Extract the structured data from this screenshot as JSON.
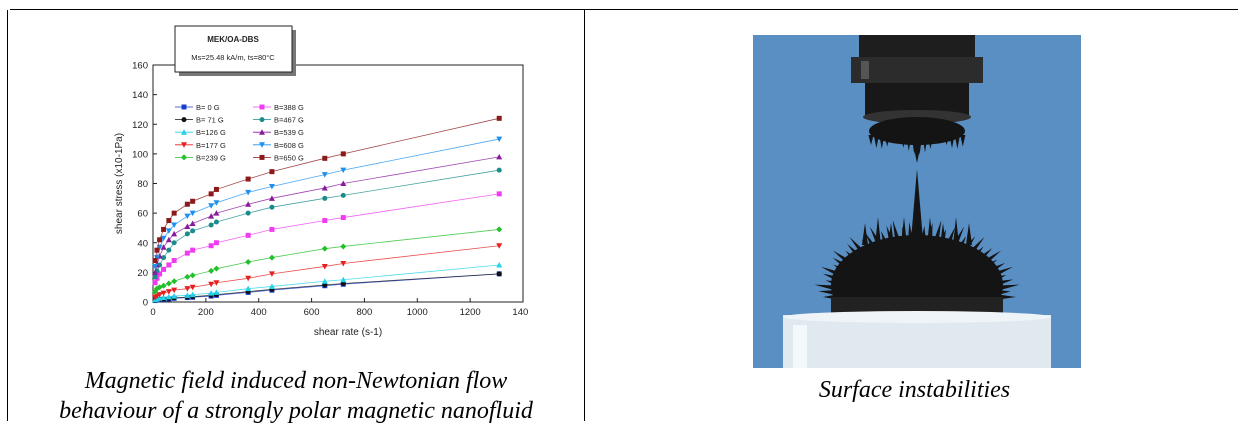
{
  "chart_data": {
    "type": "scatter",
    "annotation_title": "MEK/OA-DBS",
    "annotation_subtitle": "Ms=25.48 kA/m, ts=80°C",
    "xlabel": "shear rate (s-1)",
    "ylabel": "shear stress (x10-1Pa)",
    "xlim": [
      0,
      1400
    ],
    "ylim": [
      0,
      160
    ],
    "xticks": [
      0,
      200,
      400,
      600,
      800,
      1000,
      1200,
      1400
    ],
    "yticks": [
      0,
      20,
      40,
      60,
      80,
      100,
      120,
      140,
      160
    ],
    "legend_placement": "upper-left",
    "x": [
      8,
      15,
      25,
      40,
      60,
      80,
      130,
      150,
      220,
      240,
      360,
      450,
      650,
      720,
      1310
    ],
    "series": [
      {
        "name": "B=   0 G",
        "color": "#1a3ccc",
        "marker": "square",
        "values": [
          1,
          1.3,
          1.5,
          1.8,
          2,
          2.5,
          3,
          3.2,
          4,
          4.5,
          6.5,
          8,
          11,
          12,
          19
        ]
      },
      {
        "name": "B=  71 G",
        "color": "#111111",
        "marker": "circle",
        "values": [
          1.2,
          1.5,
          1.8,
          2,
          2.4,
          2.8,
          3.3,
          3.6,
          4.5,
          5,
          7,
          8.5,
          11.5,
          12.5,
          19
        ]
      },
      {
        "name": "B=126 G",
        "color": "#22d3e8",
        "marker": "triangle",
        "values": [
          1.5,
          2,
          2.5,
          3,
          3.5,
          4,
          4.5,
          5,
          6,
          6.5,
          9,
          10.5,
          14,
          15,
          25
        ]
      },
      {
        "name": "B=177 G",
        "color": "#e62020",
        "marker": "tri-down",
        "values": [
          3,
          4,
          5,
          6,
          7,
          8,
          9,
          10,
          12,
          13,
          16,
          19,
          24,
          26,
          38
        ]
      },
      {
        "name": "B=239 G",
        "color": "#22c02a",
        "marker": "diamond",
        "values": [
          7,
          9,
          10,
          11,
          12.5,
          14,
          17,
          18,
          21,
          22.5,
          27,
          30,
          36,
          37.5,
          49
        ]
      },
      {
        "name": "B=388 G",
        "color": "#f03cf0",
        "marker": "square",
        "values": [
          13,
          16,
          19,
          22,
          25,
          28,
          33,
          35,
          38,
          40,
          45,
          49,
          55,
          57,
          73
        ]
      },
      {
        "name": "B=467 G",
        "color": "#1a8c8c",
        "marker": "circle",
        "values": [
          17,
          21,
          25,
          30,
          35,
          40,
          46,
          48,
          52,
          54,
          60,
          64,
          70,
          72,
          89
        ]
      },
      {
        "name": "B=539 G",
        "color": "#8a1a9c",
        "marker": "triangle",
        "values": [
          20,
          25,
          31,
          37,
          42,
          46,
          51,
          53,
          58,
          60,
          66,
          70,
          77,
          80,
          98
        ]
      },
      {
        "name": "B=608 G",
        "color": "#1e90ee",
        "marker": "tri-down",
        "values": [
          24,
          30,
          37,
          43,
          48,
          52,
          58,
          60,
          65,
          67,
          74,
          78,
          86,
          89,
          110
        ]
      },
      {
        "name": "B=650 G",
        "color": "#8c1a1a",
        "marker": "square",
        "values": [
          28,
          35,
          42,
          49,
          55,
          60,
          66,
          68,
          73,
          76,
          83,
          88,
          97,
          100,
          124
        ]
      }
    ]
  },
  "captions": {
    "left_line1": "Magnetic field induced non-Newtonian flow",
    "left_line2": "behaviour of a strongly polar magnetic nanofluid",
    "right": "Surface instabilities"
  },
  "photo": {
    "background": "#5a8fc4",
    "spike_color": "#141414"
  }
}
